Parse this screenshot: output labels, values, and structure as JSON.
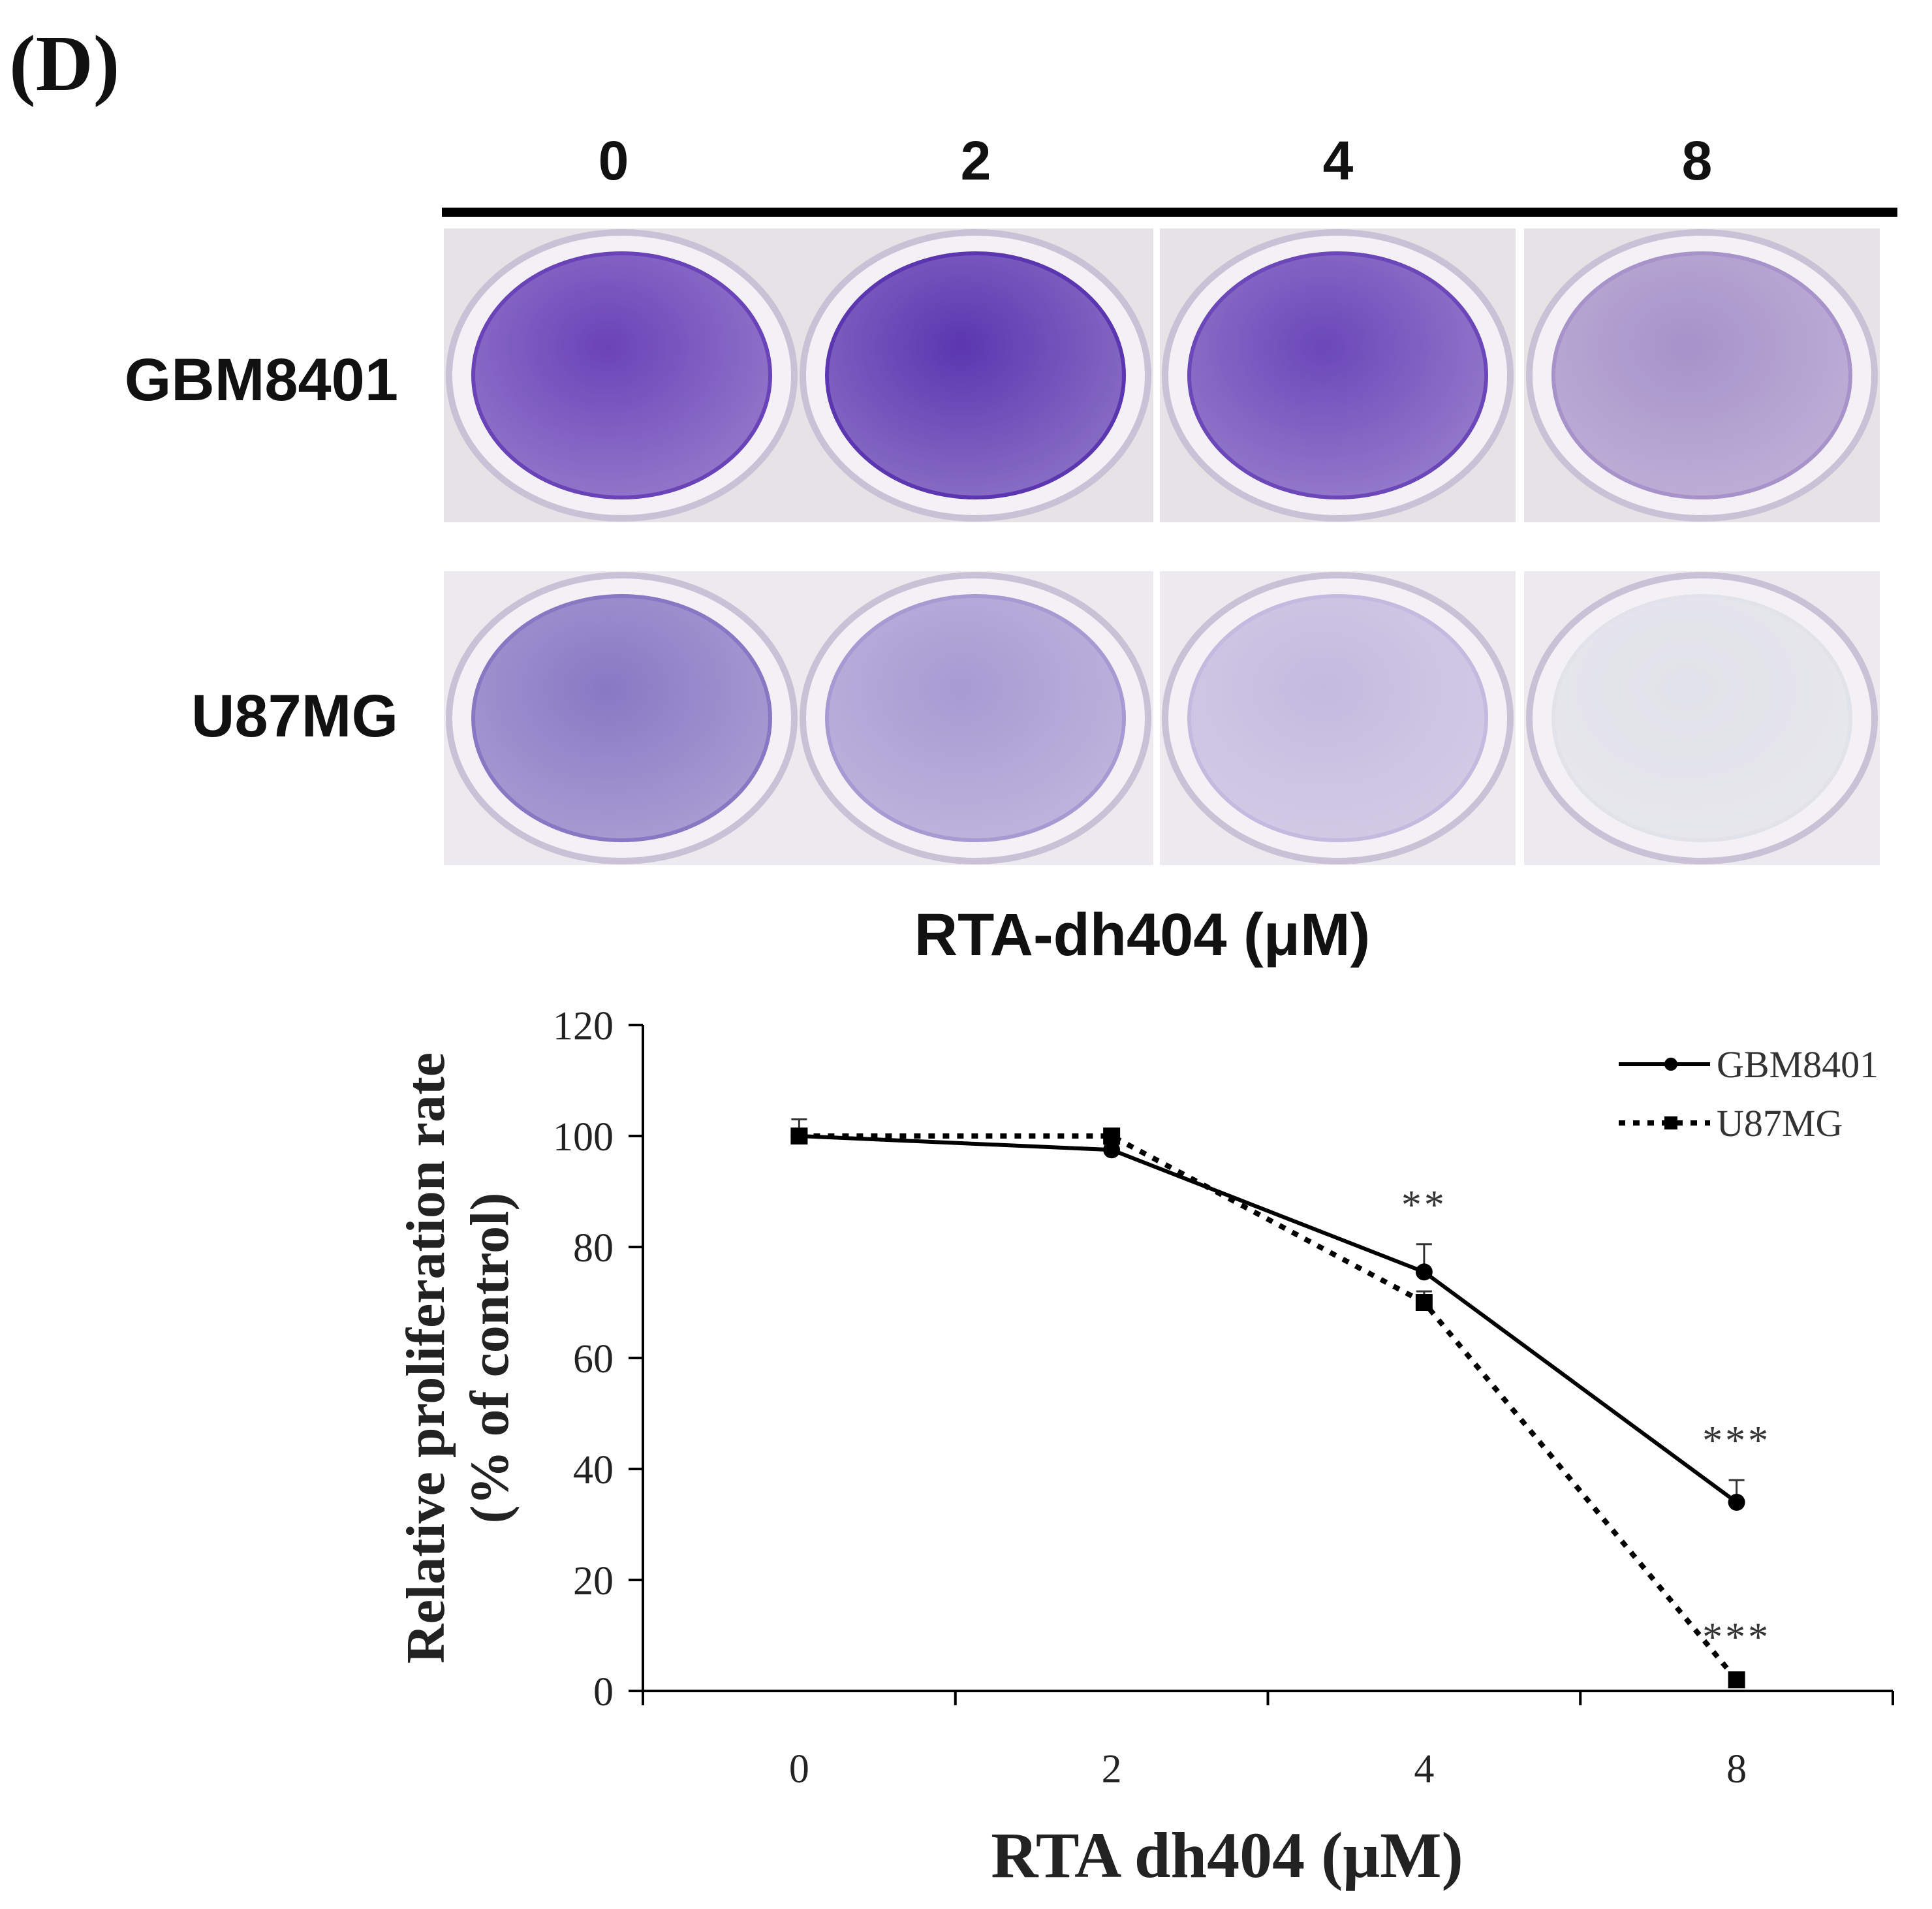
{
  "panel_label": "(D)",
  "photo_panel": {
    "doses": [
      "0",
      "2",
      "4",
      "8"
    ],
    "rows": [
      "GBM8401",
      "U87MG"
    ],
    "xlabel": "RTA-dh404 (μM)",
    "stain_colors": {
      "GBM8401": [
        "#6a43b8",
        "#5b36b0",
        "#6b47b9",
        "#a792c9"
      ],
      "U87MG": [
        "#8878c4",
        "#a79ad2",
        "#c3bbdf",
        "#e2e2ea"
      ]
    }
  },
  "chart_data": {
    "type": "line",
    "categories": [
      "0",
      "2",
      "4",
      "8"
    ],
    "series": [
      {
        "name": "GBM8401",
        "values": [
          100,
          97.5,
          75.5,
          34
        ],
        "errors": [
          3,
          1,
          5,
          4
        ],
        "significance": [
          "",
          "",
          "**",
          "***"
        ],
        "style": "solid",
        "marker": "circle"
      },
      {
        "name": "U87MG",
        "values": [
          100,
          100,
          70,
          2
        ],
        "errors": [
          1,
          1,
          2,
          0
        ],
        "significance": [
          "",
          "",
          "",
          "***"
        ],
        "style": "dotted",
        "marker": "square"
      }
    ],
    "title": "",
    "xlabel": "RTA dh404 (μM)",
    "ylabel": [
      "Relative proliferation rate",
      "(% of control)"
    ],
    "ylim": [
      0,
      120
    ],
    "yticks": [
      0,
      20,
      40,
      60,
      80,
      100,
      120
    ],
    "grid": false,
    "legend": "top-right",
    "colors": {
      "line": "#000000"
    }
  }
}
